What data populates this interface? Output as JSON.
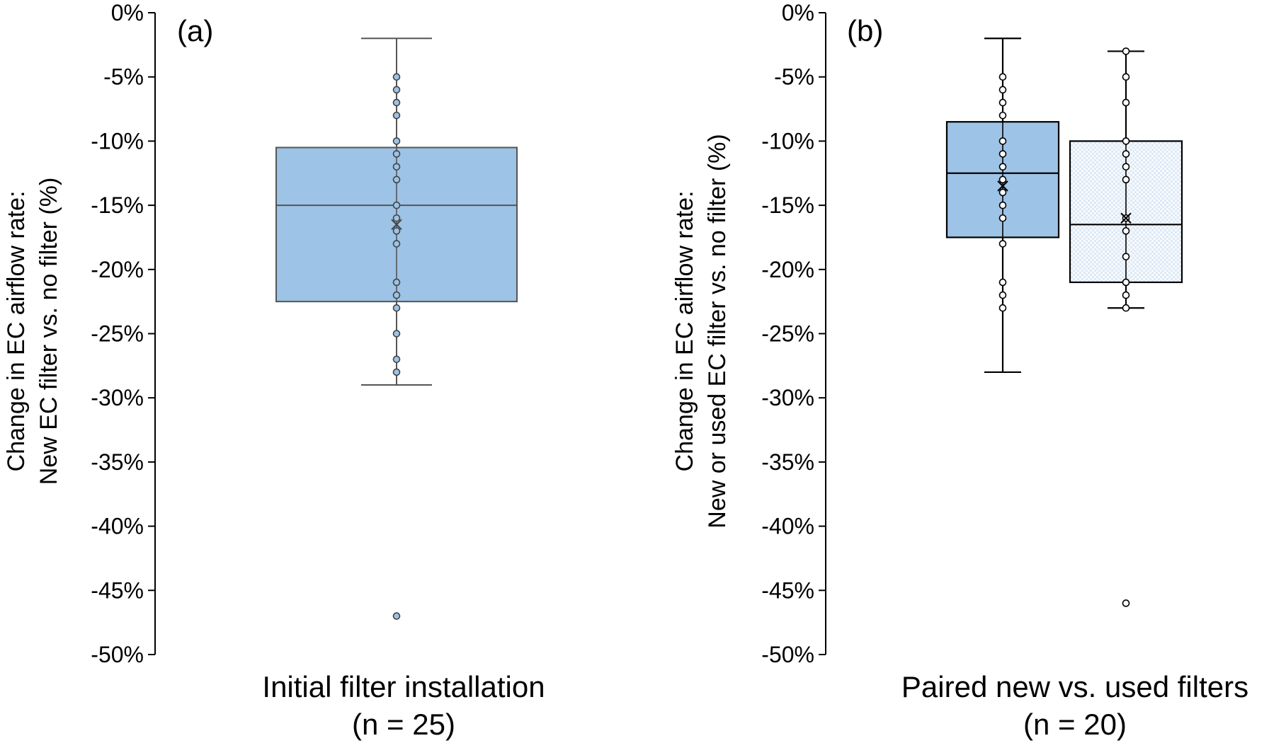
{
  "chart_data": [
    {
      "type": "box",
      "panel_label": "(a)",
      "ylabel_line1": "Change in EC airflow rate:",
      "ylabel_line2": "New EC filter vs. no filter (%)",
      "xlabel_line1": "Initial filter installation",
      "xlabel_line2": "(n = 25)",
      "ylim": [
        -50,
        0
      ],
      "yticks": [
        0,
        -5,
        -10,
        -15,
        -20,
        -25,
        -30,
        -35,
        -40,
        -45,
        -50
      ],
      "ytick_labels": [
        "0%",
        "-5%",
        "-10%",
        "-15%",
        "-20%",
        "-25%",
        "-30%",
        "-35%",
        "-40%",
        "-45%",
        "-50%"
      ],
      "boxes": [
        {
          "fill": "#9dc3e6",
          "stroke": "#555555",
          "pattern": false,
          "whisker_high": -2,
          "q3": -10.5,
          "median": -15,
          "q1": -22.5,
          "whisker_low": -29,
          "mean": -16.5,
          "points": [
            -5,
            -6,
            -7,
            -8,
            -10,
            -11,
            -12,
            -13,
            -15,
            -16,
            -17,
            -18,
            -21,
            -22,
            -23,
            -25,
            -27,
            -28,
            -47
          ]
        }
      ]
    },
    {
      "type": "box",
      "panel_label": "(b)",
      "ylabel_line1": "Change in EC airflow rate:",
      "ylabel_line2": "New or used EC filter vs. no filter (%)",
      "xlabel_line1": "Paired new vs. used filters",
      "xlabel_line2": "(n = 20)",
      "ylim": [
        -50,
        0
      ],
      "yticks": [
        0,
        -5,
        -10,
        -15,
        -20,
        -25,
        -30,
        -35,
        -40,
        -45,
        -50
      ],
      "ytick_labels": [
        "0%",
        "-5%",
        "-10%",
        "-15%",
        "-20%",
        "-25%",
        "-30%",
        "-35%",
        "-40%",
        "-45%",
        "-50%"
      ],
      "boxes": [
        {
          "fill": "#9dc3e6",
          "stroke": "#000000",
          "pattern": false,
          "whisker_high": -2,
          "q3": -8.5,
          "median": -12.5,
          "q1": -17.5,
          "whisker_low": -28,
          "mean": -13.5,
          "points": [
            -5,
            -6,
            -7,
            -8,
            -10,
            -11,
            -12,
            -13,
            -14,
            -15,
            -16,
            -18,
            -21,
            -22,
            -23
          ]
        },
        {
          "fill": "#f4f8fc",
          "stroke": "#000000",
          "pattern": true,
          "whisker_high": -3,
          "q3": -10,
          "median": -16.5,
          "q1": -21,
          "whisker_low": -23,
          "mean": -16,
          "points": [
            -3,
            -5,
            -7,
            -10,
            -11,
            -12,
            -13,
            -16,
            -17,
            -19,
            -21,
            -22,
            -23,
            -46
          ]
        }
      ]
    }
  ]
}
